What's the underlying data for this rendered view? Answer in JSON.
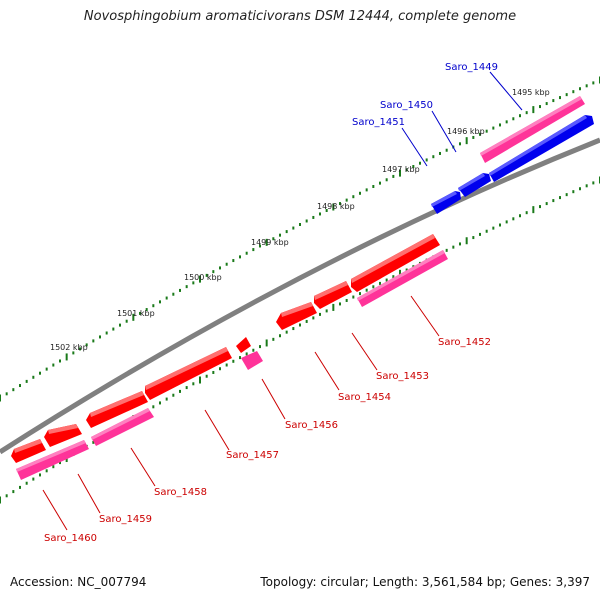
{
  "title": "Novosphingobium aromaticivorans DSM 12444, complete genome",
  "footer": {
    "accession": "Accession: NC_007794",
    "summary": "Topology: circular; Length: 3,561,584 bp; Genes: 3,397"
  },
  "colors": {
    "backbone": "#808080",
    "tick": "#1a7a1a",
    "forward_cds": "#0000ee",
    "forward_gene": "#ff3399",
    "reverse_cds": "#ff0000",
    "reverse_gene": "#ff3399",
    "forward_label": "#0000cc",
    "reverse_label": "#cc0000"
  },
  "scale_labels": [
    "1495 kbp",
    "1496 kbp",
    "1497 kbp",
    "1498 kbp",
    "1499 kbp",
    "1500 kbp",
    "1501 kbp",
    "1502 kbp"
  ],
  "features": [
    {
      "name": "Saro_1449",
      "strand": "forward"
    },
    {
      "name": "Saro_1450",
      "strand": "forward"
    },
    {
      "name": "Saro_1451",
      "strand": "forward"
    },
    {
      "name": "Saro_1452",
      "strand": "reverse"
    },
    {
      "name": "Saro_1453",
      "strand": "reverse"
    },
    {
      "name": "Saro_1454",
      "strand": "reverse"
    },
    {
      "name": "Saro_1456",
      "strand": "reverse"
    },
    {
      "name": "Saro_1457",
      "strand": "reverse"
    },
    {
      "name": "Saro_1458",
      "strand": "reverse"
    },
    {
      "name": "Saro_1459",
      "strand": "reverse"
    },
    {
      "name": "Saro_1460",
      "strand": "reverse"
    }
  ]
}
